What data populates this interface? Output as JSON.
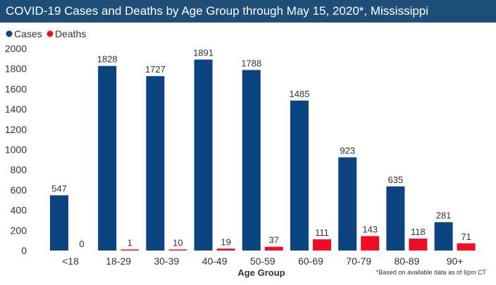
{
  "colors": {
    "title_bg": "#1f4e79",
    "cases": "#0b4383",
    "deaths": "#f00d24",
    "text": "#333333"
  },
  "chart_data": {
    "type": "bar",
    "title": "COVID-19 Cases and Deaths by Age Group through May 15, 2020*, Mississippi",
    "xlabel": "Age Group",
    "ylabel": "",
    "ylim": [
      0,
      2000
    ],
    "yticks": [
      0,
      200,
      400,
      600,
      800,
      1000,
      1200,
      1400,
      1600,
      1800,
      2000
    ],
    "categories": [
      "<18",
      "18-29",
      "30-39",
      "40-49",
      "50-59",
      "60-69",
      "70-79",
      "80-89",
      "90+"
    ],
    "series": [
      {
        "name": "Cases",
        "color": "#0b4383",
        "values": [
          547,
          1828,
          1727,
          1891,
          1788,
          1485,
          923,
          635,
          281
        ]
      },
      {
        "name": "Deaths",
        "color": "#f00d24",
        "values": [
          0,
          1,
          10,
          19,
          37,
          111,
          143,
          118,
          71
        ]
      }
    ],
    "legend": "top-left",
    "grid": false,
    "footnote": "*Based on available data as of 6pm CT"
  }
}
